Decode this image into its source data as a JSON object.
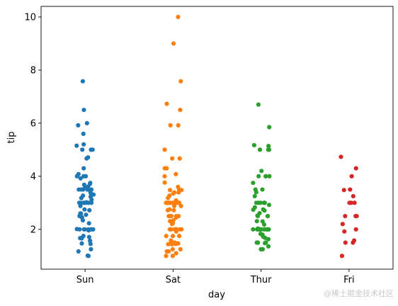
{
  "chart_data": {
    "type": "scatter",
    "subtype": "strip",
    "title": "",
    "xlabel": "day",
    "ylabel": "tip",
    "categories": [
      "Sun",
      "Sat",
      "Thur",
      "Fri"
    ],
    "ylim": [
      0.5,
      10.4
    ],
    "yticks": [
      "2",
      "4",
      "6",
      "8",
      "10"
    ],
    "grid": false,
    "legend": "none",
    "colors": [
      "#1f77b4",
      "#ff7f0e",
      "#2ca02c",
      "#d62728"
    ],
    "series": [
      {
        "category": "Sun",
        "values": [
          1.01,
          1.66,
          3.5,
          3.31,
          3.61,
          4.71,
          2.0,
          3.12,
          1.96,
          3.23,
          1.71,
          5.0,
          1.57,
          3.0,
          3.02,
          3.92,
          1.67,
          3.71,
          3.5,
          3.35,
          4.08,
          2.75,
          2.23,
          7.58,
          3.18,
          2.34,
          2.0,
          2.0,
          4.3,
          3.0,
          1.45,
          2.5,
          3.0,
          2.45,
          3.27,
          3.6,
          2.0,
          3.0,
          2.72,
          2.88,
          2.0,
          3.0,
          3.39,
          1.47,
          3.0,
          1.25,
          1.0,
          1.17,
          4.67,
          5.92,
          2.0,
          1.75,
          3.0,
          2.6,
          3.5,
          5.6,
          5.2,
          5.0,
          6.5,
          4.0,
          2.5,
          3.5,
          3.5,
          5.15,
          3.0,
          3.5,
          4.0,
          2.6,
          3.75,
          2.0,
          4.0,
          5.0,
          6.0,
          3.0,
          2.01,
          2.55,
          3.68
        ]
      },
      {
        "category": "Sat",
        "values": [
          3.35,
          4.08,
          2.75,
          2.23,
          7.58,
          3.18,
          2.34,
          2.0,
          2.0,
          4.3,
          3.0,
          1.45,
          2.5,
          3.0,
          2.45,
          3.27,
          3.6,
          2.0,
          3.0,
          2.72,
          2.88,
          2.0,
          3.0,
          3.39,
          1.47,
          3.0,
          1.25,
          1.0,
          1.17,
          4.67,
          5.92,
          2.0,
          1.75,
          3.0,
          3.0,
          1.5,
          1.44,
          3.76,
          2.31,
          2.0,
          2.5,
          10.0,
          3.48,
          1.5,
          3.5,
          2.5,
          4.0,
          3.0,
          9.0,
          2.0,
          2.5,
          2.0,
          1.75,
          3.0,
          6.5,
          1.1,
          3.0,
          1.5,
          1.44,
          3.09,
          2.2,
          3.48,
          1.92,
          3.0,
          1.58,
          2.5,
          2.0,
          3.0,
          2.72,
          2.88,
          2.0,
          3.0,
          3.39,
          1.47,
          3.0,
          1.25,
          1.0,
          1.17,
          4.67,
          5.92,
          5.0,
          2.0,
          2.0,
          1.75,
          6.73,
          4.3,
          3.0
        ]
      },
      {
        "category": "Thur",
        "values": [
          4.0,
          3.0,
          2.71,
          3.0,
          3.4,
          1.83,
          5.0,
          2.03,
          5.17,
          2.0,
          4.0,
          5.85,
          3.0,
          1.5,
          1.8,
          2.92,
          2.31,
          1.68,
          2.5,
          2.0,
          2.52,
          4.2,
          1.48,
          2.0,
          2.0,
          2.18,
          1.5,
          2.83,
          1.5,
          2.0,
          3.25,
          1.25,
          2.0,
          2.0,
          2.0,
          2.75,
          3.5,
          6.7,
          5.0,
          5.0,
          2.3,
          1.5,
          1.36,
          1.63,
          1.73,
          2.0,
          2.5,
          2.0,
          2.74,
          2.0,
          2.0,
          5.14,
          5.0,
          3.75,
          2.61,
          2.0,
          3.5,
          2.5,
          2.0,
          2.0,
          3.0,
          4.0,
          1.5,
          3.0,
          3.0,
          2.0,
          1.5,
          4.0,
          1.25
        ]
      },
      {
        "category": "Fri",
        "values": [
          3.0,
          3.5,
          1.0,
          4.3,
          3.25,
          4.73,
          4.0,
          1.5,
          3.0,
          1.5,
          2.5,
          3.0,
          2.5,
          3.48,
          2.2,
          1.92,
          2.0,
          1.58,
          2.5
        ]
      }
    ]
  },
  "watermark": "@稀土掘金技术社区"
}
